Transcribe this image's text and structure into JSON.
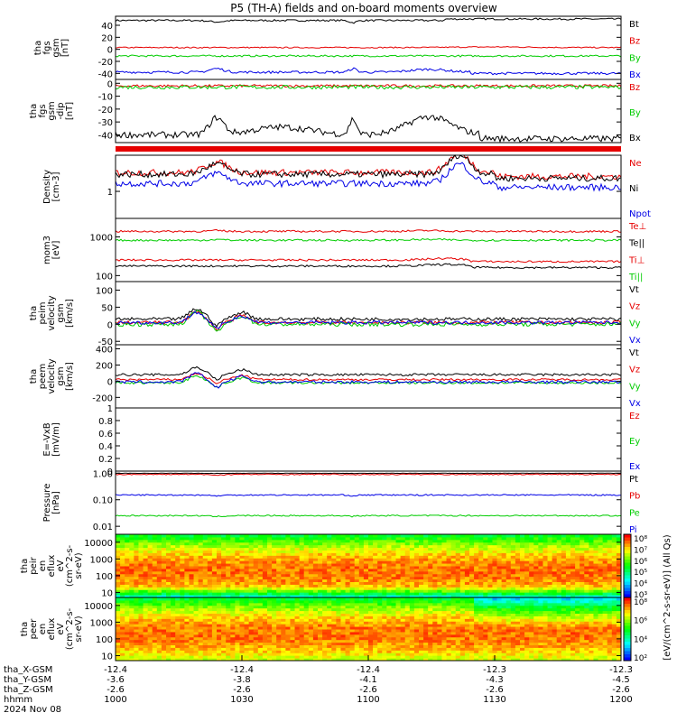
{
  "figure": {
    "title": "P5 (TH-A) fields and on-board moments overview",
    "date": "2024 Nov 08"
  },
  "orbit": {
    "labels": [
      "tha_X-GSM",
      "tha_Y-GSM",
      "tha_Z-GSM",
      "hhmm"
    ],
    "columns": [
      {
        "x": "-12.4",
        "y": "-3.6",
        "z": "-2.6",
        "t": "1000"
      },
      {
        "x": "-12.4",
        "y": "-3.8",
        "z": "-2.6",
        "t": "1030"
      },
      {
        "x": "-12.4",
        "y": "-4.1",
        "z": "-2.6",
        "t": "1100"
      },
      {
        "x": "-12.3",
        "y": "-4.3",
        "z": "-2.6",
        "t": "1130"
      },
      {
        "x": "-12.3",
        "y": "-4.5",
        "z": "-2.6",
        "t": "1200"
      }
    ]
  },
  "chart_data": [
    {
      "type": "line",
      "id": "p1",
      "ylabel": [
        "tha",
        "fgs",
        "gsm",
        "[nT]"
      ],
      "ylim": [
        -50,
        55
      ],
      "scale": "linear",
      "yticks": [
        40,
        20,
        0,
        -20,
        -40
      ],
      "series": [
        {
          "name": "Bt",
          "color": "#000000",
          "base": 45,
          "amp": 3,
          "shape": "bt"
        },
        {
          "name": "Bz",
          "color": "#e60000",
          "base": 3,
          "amp": 2,
          "shape": "bz"
        },
        {
          "name": "By",
          "color": "#00cc00",
          "base": -11,
          "amp": 3,
          "shape": "flat"
        },
        {
          "name": "Bx",
          "color": "#0000e6",
          "base": -38,
          "amp": 4,
          "shape": "bx"
        }
      ]
    },
    {
      "type": "line",
      "id": "p2",
      "ylabel": [
        "tha",
        "fgs",
        "gsm",
        "-dip",
        "[nT]"
      ],
      "ylim": [
        -46,
        3
      ],
      "scale": "linear",
      "yticks": [
        0,
        -10,
        -20,
        -30,
        -40
      ],
      "series": [
        {
          "name": "Bz",
          "color": "#e60000",
          "base": -2,
          "amp": 2,
          "shape": "flat"
        },
        {
          "name": "By",
          "color": "#00cc00",
          "base": -3,
          "amp": 3,
          "shape": "flat"
        },
        {
          "name": "Bx",
          "color": "#000000",
          "base": -40,
          "amp": 5,
          "shape": "bx2"
        }
      ]
    },
    {
      "type": "bar",
      "id": "flag",
      "color": "#e60000"
    },
    {
      "type": "line",
      "id": "p3",
      "ylabel": [
        "Density",
        "[cm-3]"
      ],
      "ylim": [
        0.3,
        5
      ],
      "scale": "log",
      "yticks": [
        1
      ],
      "series": [
        {
          "name": "Ne",
          "color": "#e60000",
          "base": 1.3,
          "amp": 0.25,
          "shape": "dens"
        },
        {
          "name": "Ni",
          "color": "#000000",
          "base": 1.2,
          "amp": 0.25,
          "shape": "dens"
        },
        {
          "name": "Npot",
          "color": "#0000e6",
          "base": 0.8,
          "amp": 0.25,
          "shape": "dens"
        }
      ]
    },
    {
      "type": "line",
      "id": "p4",
      "ylabel": [
        "mom3",
        "[eV]"
      ],
      "ylim": [
        70,
        3000
      ],
      "scale": "log",
      "yticks": [
        1000,
        100
      ],
      "series": [
        {
          "name": "Te⊥",
          "color": "#e60000",
          "base": 1100,
          "amp": 0.1,
          "shape": "temp"
        },
        {
          "name": "Te||",
          "color": "#000000",
          "base": 140,
          "amp": 0.1,
          "shape": "temp2"
        },
        {
          "name": "Ti⊥",
          "color": "#e60000",
          "base": 200,
          "amp": 0.1,
          "shape": "temp2"
        },
        {
          "name": "Ti||",
          "color": "#00cc00",
          "base": 650,
          "amp": 0.1,
          "shape": "temp"
        }
      ]
    },
    {
      "type": "line",
      "id": "p5",
      "ylabel": [
        "tha",
        "peim",
        "velocity",
        "gsm",
        "[km/s]"
      ],
      "ylim": [
        -60,
        125
      ],
      "scale": "linear",
      "yticks": [
        100,
        50,
        0,
        -50
      ],
      "series": [
        {
          "name": "Vt",
          "color": "#000000",
          "base": 15,
          "amp": 10,
          "shape": "vel"
        },
        {
          "name": "Vz",
          "color": "#e60000",
          "base": 5,
          "amp": 10,
          "shape": "vel"
        },
        {
          "name": "Vy",
          "color": "#00cc00",
          "base": 0,
          "amp": 12,
          "shape": "vel"
        },
        {
          "name": "Vx",
          "color": "#0000e6",
          "base": 5,
          "amp": 10,
          "shape": "vel"
        }
      ]
    },
    {
      "type": "line",
      "id": "p6",
      "ylabel": [
        "tha",
        "peem",
        "velocity",
        "gsm",
        "[km/s]"
      ],
      "ylim": [
        -330,
        450
      ],
      "scale": "linear",
      "yticks": [
        400,
        200,
        0,
        -200
      ],
      "series": [
        {
          "name": "Vt",
          "color": "#000000",
          "base": 80,
          "amp": 30,
          "shape": "vel"
        },
        {
          "name": "Vz",
          "color": "#e60000",
          "base": 20,
          "amp": 25,
          "shape": "vel"
        },
        {
          "name": "Vy",
          "color": "#00cc00",
          "base": -20,
          "amp": 30,
          "shape": "vel"
        },
        {
          "name": "Vx",
          "color": "#0000e6",
          "base": -10,
          "amp": 35,
          "shape": "vel"
        }
      ]
    },
    {
      "type": "line",
      "id": "p7",
      "ylabel": [
        "E=-VxB",
        "[mV/m]"
      ],
      "ylim": [
        0,
        1.0
      ],
      "scale": "linear",
      "yticks": [
        1.0,
        0.8,
        0.6,
        0.4,
        0.2,
        0.0
      ],
      "series": [
        {
          "name": "Ez",
          "color": "#e60000",
          "shape": "none"
        },
        {
          "name": "Ey",
          "color": "#00cc00",
          "shape": "none"
        },
        {
          "name": "Ex",
          "color": "#0000e6",
          "shape": "none"
        }
      ]
    },
    {
      "type": "line",
      "id": "p8",
      "ylabel": [
        "Pressure",
        "[nPa]"
      ],
      "ylim": [
        0.005,
        1.2
      ],
      "scale": "log",
      "yticks": [
        1.0,
        0.1,
        0.01
      ],
      "yticklabels": [
        "1.00",
        "0.10",
        "0.01"
      ],
      "series": [
        {
          "name": "Pt",
          "color": "#000000",
          "base": 0.95,
          "amp": 0.02,
          "shape": "pres"
        },
        {
          "name": "Pb",
          "color": "#e60000",
          "base": 0.75,
          "amp": 0.08,
          "shape": "pres"
        },
        {
          "name": "Pe",
          "color": "#00cc00",
          "base": 0.02,
          "amp": 0.1,
          "shape": "pres"
        },
        {
          "name": "Pi",
          "color": "#0000e6",
          "base": 0.12,
          "amp": 0.1,
          "shape": "pres"
        }
      ]
    },
    {
      "type": "heatmap",
      "id": "s1",
      "ylabel": [
        "tha",
        "peir",
        "en",
        "eflux",
        "eV",
        "(cm^2-s-",
        "sr-eV)"
      ],
      "ylim": [
        5,
        30000
      ],
      "scale": "log",
      "yticks": [
        10000,
        1000,
        100,
        10
      ],
      "cbar_ticks": [
        "10⁸",
        "10⁷",
        "10⁶",
        "10⁵",
        "10⁴",
        "10³"
      ]
    },
    {
      "type": "heatmap",
      "id": "s2",
      "ylabel": [
        "tha",
        "peer",
        "en",
        "eflux",
        "eV",
        "(cm^2-s-",
        "sr-eV)"
      ],
      "ylim": [
        5,
        30000
      ],
      "scale": "log",
      "yticks": [
        10000,
        1000,
        100,
        10
      ],
      "cbar_ticks": [
        "10⁸",
        "10⁶",
        "10⁴",
        "10²"
      ]
    }
  ],
  "colorbar_label": "[eV/(cm^2-s-sr-eV)] (All Qs)",
  "xaxis": {
    "tick_labels": [
      "1000",
      "1030",
      "1100",
      "1130",
      "1200"
    ]
  }
}
